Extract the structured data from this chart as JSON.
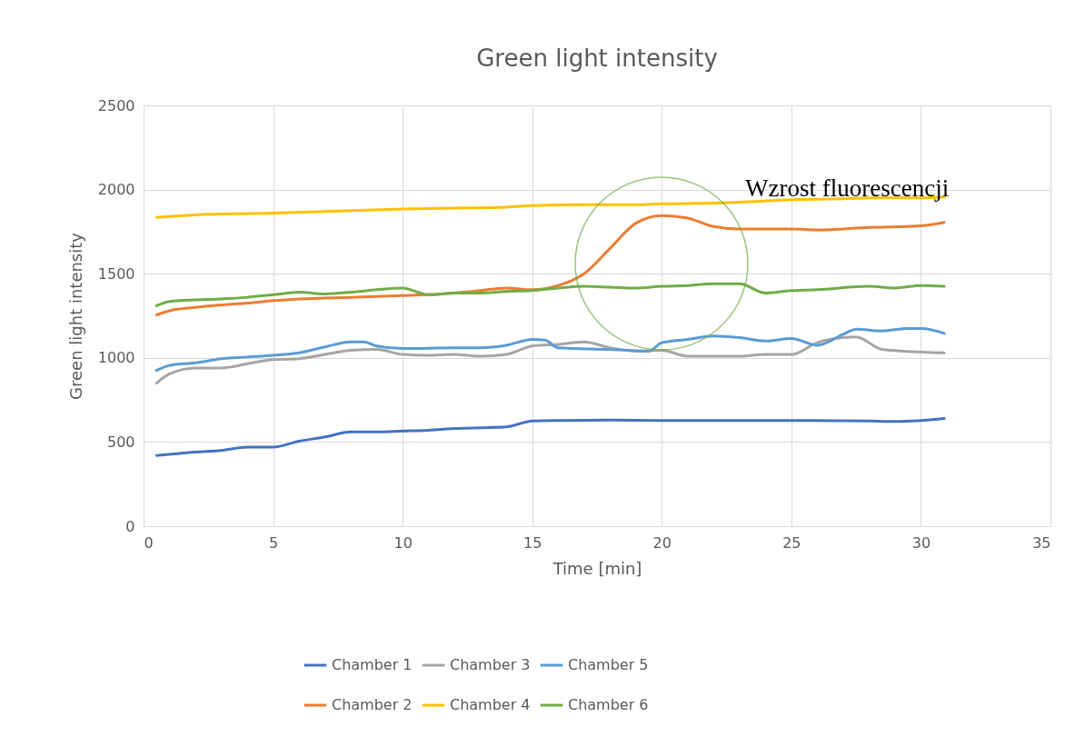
{
  "chart_data": {
    "type": "line",
    "title": "Green light intensity",
    "xlabel": "Time [min]",
    "ylabel": "Green light intensity",
    "xlim": [
      0,
      35
    ],
    "xticks": [
      0,
      5,
      10,
      15,
      20,
      25,
      30,
      35
    ],
    "ylim": [
      0,
      2500
    ],
    "yticks": [
      0,
      500,
      1000,
      1500,
      2000,
      2500
    ],
    "grid": true,
    "legend": "bottom",
    "marker": "none",
    "line_style": "solid",
    "annotations": [
      "Wzrost fluorescencji"
    ],
    "series": [
      {
        "name": "Chamber 1",
        "color": "#4472c4",
        "x": [
          0.5,
          2,
          3,
          4,
          5,
          6,
          7,
          8,
          9,
          10,
          11,
          12,
          13,
          14,
          15,
          16,
          18,
          20,
          22,
          24,
          26,
          28,
          29,
          30,
          30.9
        ],
        "values": [
          420,
          440,
          450,
          470,
          470,
          505,
          530,
          560,
          560,
          565,
          570,
          580,
          585,
          590,
          625,
          628,
          630,
          628,
          628,
          628,
          628,
          625,
          622,
          628,
          640
        ]
      },
      {
        "name": "Chamber 2",
        "color": "#ed7d31",
        "x": [
          0.5,
          1,
          2,
          3,
          4,
          5,
          6,
          8,
          10,
          12,
          13,
          14,
          15,
          16,
          17,
          18,
          19,
          20,
          21,
          22,
          23,
          25,
          26,
          28,
          30,
          30.9
        ],
        "values": [
          1255,
          1280,
          1300,
          1315,
          1325,
          1340,
          1350,
          1360,
          1370,
          1385,
          1400,
          1415,
          1405,
          1430,
          1500,
          1650,
          1800,
          1845,
          1830,
          1780,
          1765,
          1765,
          1760,
          1775,
          1785,
          1805
        ]
      },
      {
        "name": "Chamber 3",
        "color": "#a5a5a5",
        "x": [
          0.5,
          1,
          2,
          3,
          4,
          5,
          6,
          7,
          8,
          9,
          10,
          11,
          12,
          13,
          14,
          15,
          16,
          17,
          18,
          19,
          20,
          21,
          22,
          23,
          24,
          25,
          26,
          27,
          27.5,
          28.5,
          30,
          30.9
        ],
        "values": [
          850,
          905,
          940,
          940,
          965,
          990,
          995,
          1020,
          1045,
          1050,
          1020,
          1015,
          1020,
          1010,
          1020,
          1070,
          1080,
          1095,
          1060,
          1040,
          1045,
          1010,
          1010,
          1010,
          1020,
          1020,
          1090,
          1120,
          1125,
          1050,
          1035,
          1030
        ]
      },
      {
        "name": "Chamber 4",
        "color": "#ffc000",
        "x": [
          0.5,
          2,
          5,
          8,
          10,
          12,
          14,
          15,
          17,
          19,
          20,
          22,
          23,
          25,
          27,
          28,
          30,
          30.9
        ],
        "values": [
          1835,
          1850,
          1860,
          1875,
          1885,
          1890,
          1895,
          1905,
          1910,
          1910,
          1915,
          1920,
          1925,
          1940,
          1945,
          1950,
          1950,
          1955
        ]
      },
      {
        "name": "Chamber 5",
        "color": "#5b9bd5",
        "x": [
          0.5,
          1,
          2,
          3,
          4,
          5,
          6,
          7,
          8,
          8.5,
          9,
          10,
          12,
          13,
          14,
          15,
          15.5,
          16,
          18,
          19.5,
          20,
          21,
          22,
          23,
          24,
          25,
          26,
          27,
          27.5,
          28.5,
          29.5,
          30,
          30.9
        ],
        "values": [
          925,
          955,
          970,
          995,
          1005,
          1015,
          1030,
          1065,
          1095,
          1095,
          1070,
          1055,
          1060,
          1060,
          1075,
          1110,
          1105,
          1060,
          1050,
          1040,
          1090,
          1110,
          1130,
          1120,
          1100,
          1115,
          1075,
          1140,
          1170,
          1160,
          1175,
          1175,
          1145
        ]
      },
      {
        "name": "Chamber 6",
        "color": "#70ad47",
        "x": [
          0.5,
          1,
          2,
          3,
          4,
          5,
          6,
          7,
          8,
          9,
          10,
          11,
          12,
          13,
          14,
          15,
          16,
          17,
          18,
          19,
          20,
          21,
          22,
          23,
          24,
          25,
          26,
          28,
          29,
          30,
          30.9
        ],
        "values": [
          1310,
          1335,
          1345,
          1350,
          1360,
          1375,
          1390,
          1380,
          1390,
          1405,
          1415,
          1375,
          1385,
          1385,
          1395,
          1400,
          1415,
          1425,
          1420,
          1415,
          1425,
          1430,
          1440,
          1440,
          1385,
          1400,
          1405,
          1425,
          1415,
          1430,
          1425
        ]
      }
    ]
  }
}
